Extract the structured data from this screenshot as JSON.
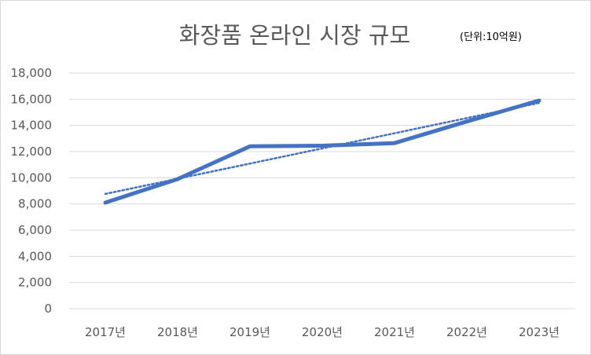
{
  "chart_data": {
    "type": "line",
    "title": "화장품 온라인 시장 규모",
    "unit_note": "(단위:10억원)",
    "categories": [
      "2017년",
      "2018년",
      "2019년",
      "2020년",
      "2021년",
      "2022년",
      "2023년"
    ],
    "series": [
      {
        "values": [
          8100,
          9900,
          12400,
          12450,
          12650,
          14300,
          15900
        ],
        "color": "#4472c4"
      }
    ],
    "trendline": {
      "type": "linear",
      "style": "dotted",
      "color": "#4472c4"
    },
    "ylim": [
      0,
      18000
    ],
    "yticks": [
      0,
      2000,
      4000,
      6000,
      8000,
      10000,
      12000,
      14000,
      16000,
      18000
    ],
    "ytick_labels": [
      "0",
      "2,000",
      "4,000",
      "6,000",
      "8,000",
      "10,000",
      "12,000",
      "14,000",
      "16,000",
      "18,000"
    ],
    "grid": true,
    "grid_color": "#d9d9d9",
    "legend": "none"
  }
}
